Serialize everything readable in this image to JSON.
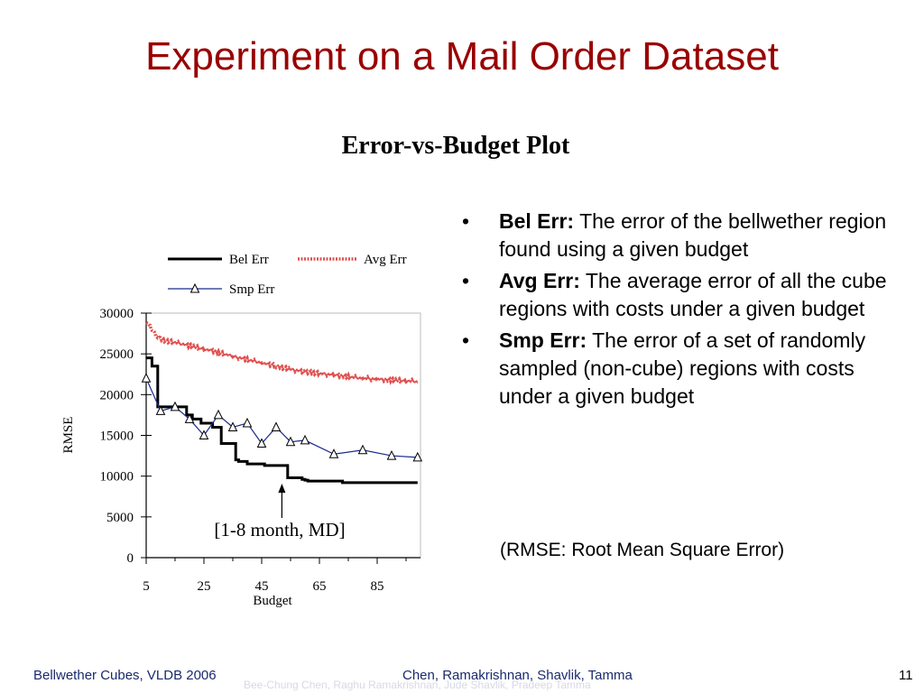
{
  "slide": {
    "title": "Experiment on a Mail Order Dataset",
    "footer_left": "Bellwether Cubes, VLDB 2006",
    "footer_center": "Chen, Ramakrishnan, Shavlik, Tamma",
    "page_number": "11",
    "watermark": "Bee-Chung Chen, Raghu Ramakrishnan, Jude Shavlik, Pradeep Tamma",
    "title_color": "#990000"
  },
  "bullets": [
    {
      "term": "Bel Err:",
      "text": " The error of the bellwether region found using a given budget"
    },
    {
      "term": "Avg Err:",
      "text": " The average error of all the cube regions with costs under a given budget"
    },
    {
      "term": "Smp Err:",
      "text": " The error of a set of randomly sampled (non-cube) regions with costs under a given budget"
    }
  ],
  "note": "(RMSE: Root Mean Square Error)",
  "annotation": "[1-8 month, MD]",
  "chart_data": {
    "type": "line",
    "title": "Error-vs-Budget Plot",
    "xlabel": "Budget",
    "ylabel": "RMSE",
    "xlim": [
      5,
      100
    ],
    "ylim": [
      0,
      30000
    ],
    "xticks": [
      5,
      25,
      45,
      65,
      85
    ],
    "yticks": [
      0,
      5000,
      10000,
      15000,
      20000,
      25000,
      30000
    ],
    "legend_position": "top",
    "series": [
      {
        "name": "Bel Err",
        "color": "#000000",
        "style": "step",
        "x": [
          5,
          6,
          7,
          8,
          9,
          17,
          18,
          19,
          20,
          21,
          24,
          28,
          30,
          31,
          32,
          36,
          37,
          40,
          42,
          46,
          47,
          48,
          50,
          54,
          55,
          59,
          60,
          61,
          72,
          73,
          81,
          82,
          99
        ],
        "y": [
          24500,
          24500,
          23500,
          23500,
          18500,
          18500,
          18500,
          17500,
          17500,
          17000,
          16500,
          16000,
          16000,
          14000,
          14000,
          12000,
          11800,
          11500,
          11500,
          11300,
          11300,
          11300,
          11300,
          9800,
          9800,
          9600,
          9500,
          9400,
          9400,
          9200,
          9200,
          9200,
          9200
        ]
      },
      {
        "name": "Avg Err",
        "color": "#e05050",
        "style": "noisy",
        "x": [
          5,
          6,
          7,
          8,
          9,
          10,
          12,
          15,
          20,
          25,
          30,
          35,
          40,
          45,
          50,
          55,
          60,
          65,
          70,
          75,
          80,
          85,
          90,
          95,
          99
        ],
        "y": [
          29000,
          28500,
          28000,
          27500,
          27000,
          26800,
          26600,
          26400,
          26000,
          25600,
          25200,
          24700,
          24300,
          23900,
          23500,
          23100,
          22800,
          22600,
          22400,
          22200,
          22000,
          21900,
          21800,
          21700,
          21600
        ]
      },
      {
        "name": "Smp Err",
        "color": "#1a2a8c",
        "style": "markers",
        "x": [
          5,
          10,
          15,
          20,
          25,
          30,
          35,
          40,
          45,
          50,
          55,
          60,
          70,
          80,
          90,
          99
        ],
        "y": [
          22000,
          18000,
          18500,
          17000,
          15000,
          17500,
          16000,
          16500,
          14000,
          16000,
          14200,
          14400,
          12700,
          13200,
          12500,
          12300
        ]
      }
    ]
  }
}
